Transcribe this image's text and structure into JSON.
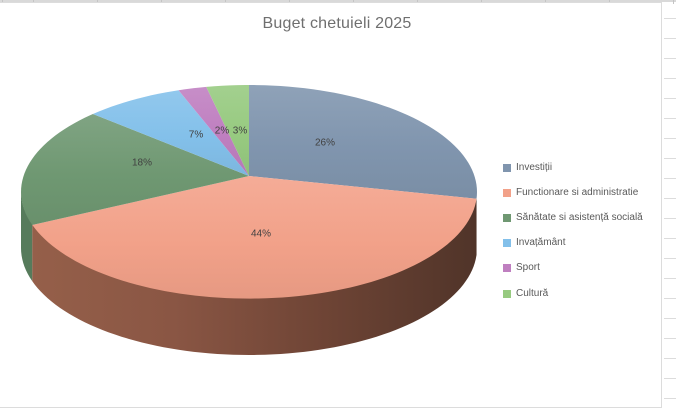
{
  "chart_data": {
    "type": "pie",
    "projection": "3d",
    "title": "Buget chetuieli 2025",
    "legend_position": "right",
    "direction": "clockwise",
    "start_angle_deg": 0,
    "categories": [
      "Investiții",
      "Functionare si administratie",
      "Sănătate si asistență socială",
      "Invațământ",
      "Sport",
      "Cultură"
    ],
    "values": [
      26,
      44,
      18,
      7,
      2,
      3
    ],
    "slices": [
      {
        "label": "Investiții",
        "value": 26,
        "pct_label": "26%",
        "color": "#8095ae",
        "side_color": "#5a7089"
      },
      {
        "label": "Functionare si administratie",
        "value": 44,
        "pct_label": "44%",
        "color": "#f2a189",
        "side_color": "#7c4a3a",
        "side_gradient": [
          "#96604a",
          "#8a5644",
          "#6e4435",
          "#503429"
        ]
      },
      {
        "label": "Sănătate si asistență socială",
        "value": 18,
        "pct_label": "18%",
        "color": "#6f9872",
        "side_color": "#567b5b"
      },
      {
        "label": "Invațământ",
        "value": 7,
        "pct_label": "7%",
        "color": "#83c0ea",
        "side_color": "#5a8cb3"
      },
      {
        "label": "Sport",
        "value": 2,
        "pct_label": "2%",
        "color": "#bf7fc0",
        "side_color": "#8d5a8e"
      },
      {
        "label": "Cultură",
        "value": 3,
        "pct_label": "3%",
        "color": "#97ca80",
        "side_color": "#6f9c5a"
      }
    ],
    "title_color": "#6f6f6f",
    "data_label_color": "#414141",
    "legend_text_color": "#595959"
  }
}
